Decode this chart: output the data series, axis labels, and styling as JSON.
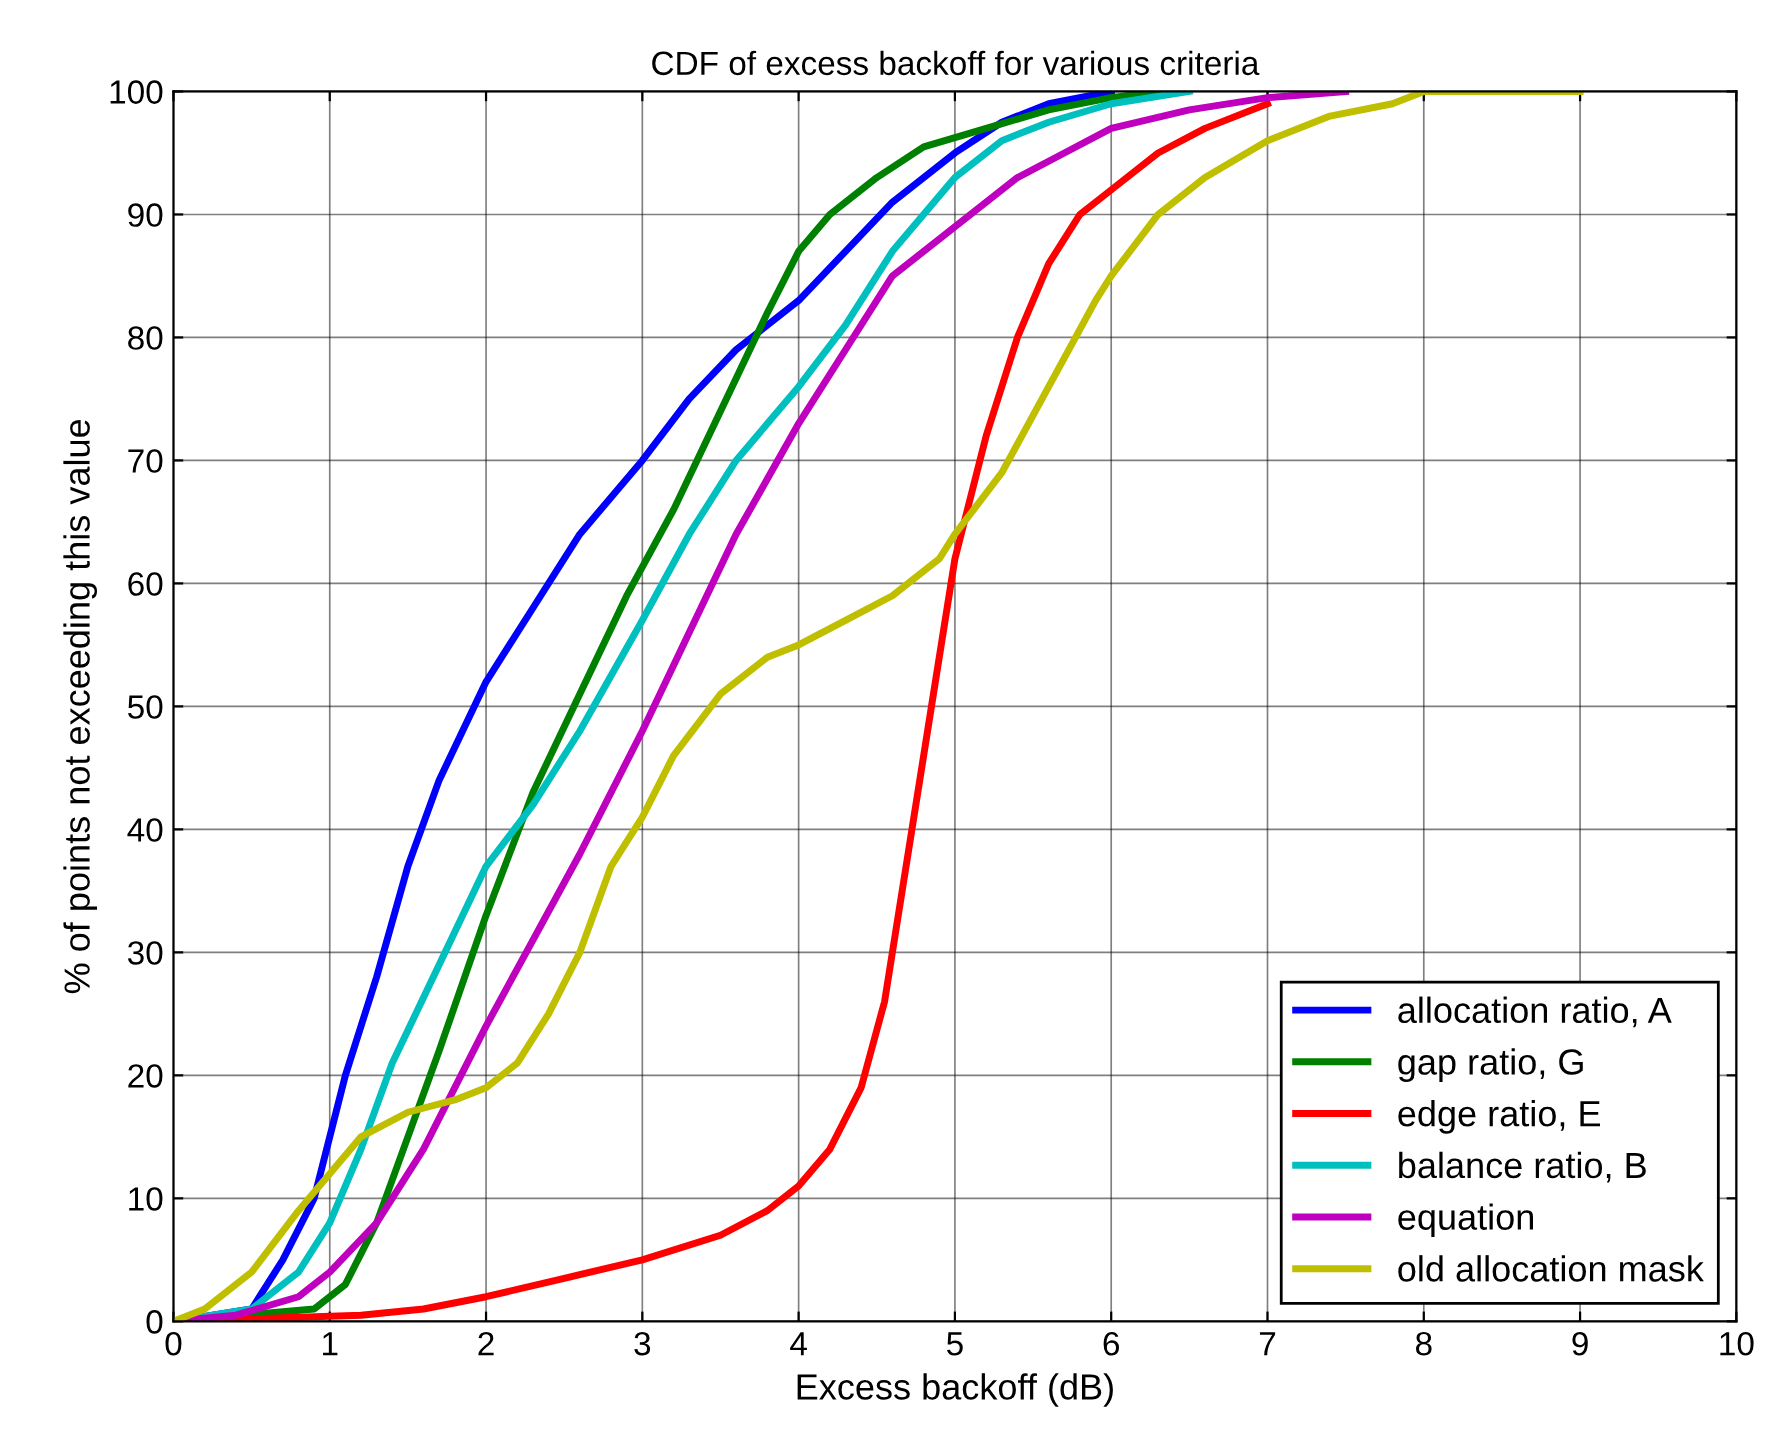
{
  "chart_data": {
    "type": "line",
    "title": "CDF of excess backoff for various criteria",
    "xlabel": "Excess backoff (dB)",
    "ylabel": "% of points not exceeding this value",
    "xlim": [
      0,
      10
    ],
    "ylim": [
      0,
      100
    ],
    "xticks": [
      0,
      1,
      2,
      3,
      4,
      5,
      6,
      7,
      8,
      9,
      10
    ],
    "yticks": [
      0,
      10,
      20,
      30,
      40,
      50,
      60,
      70,
      80,
      90,
      100
    ],
    "grid": true,
    "legend": "bottom right",
    "line_style": "solid",
    "marker": "none",
    "series": [
      {
        "name": "allocation ratio, A",
        "color": "#0000ff",
        "x": [
          0,
          0.5,
          0.7,
          0.9,
          1.1,
          1.3,
          1.5,
          1.7,
          2.0,
          2.3,
          2.6,
          3.0,
          3.3,
          3.6,
          4.0,
          4.3,
          4.6,
          5.0,
          5.3,
          5.6,
          6.0
        ],
        "values": [
          0,
          1,
          5,
          10,
          20,
          28,
          37,
          44,
          52,
          58,
          64,
          70,
          75,
          79,
          83,
          87,
          91,
          95,
          97.5,
          99,
          100
        ]
      },
      {
        "name": "gap ratio, G",
        "color": "#008000",
        "x": [
          0,
          0.9,
          1.1,
          1.3,
          1.5,
          1.7,
          2.0,
          2.3,
          2.6,
          2.9,
          3.2,
          3.5,
          3.8,
          4.0,
          4.2,
          4.5,
          4.8,
          5.2,
          5.6,
          6.0,
          6.3
        ],
        "values": [
          0,
          1,
          3,
          8,
          15,
          22,
          33,
          43,
          51,
          59,
          66,
          74,
          82,
          87,
          90,
          93,
          95.5,
          97,
          98.5,
          99.5,
          100
        ]
      },
      {
        "name": "edge ratio, E",
        "color": "#ff0000",
        "x": [
          0,
          1.2,
          1.6,
          2.0,
          2.5,
          3.0,
          3.5,
          3.8,
          4.0,
          4.2,
          4.4,
          4.55,
          4.7,
          4.85,
          5.0,
          5.2,
          5.4,
          5.6,
          5.8,
          6.0,
          6.3,
          6.6,
          7.0
        ],
        "values": [
          0,
          0.5,
          1,
          2,
          3.5,
          5,
          7,
          9,
          11,
          14,
          19,
          26,
          38,
          50,
          62,
          72,
          80,
          86,
          90,
          92,
          95,
          97,
          99
        ]
      },
      {
        "name": "balance ratio, B",
        "color": "#00bfbf",
        "x": [
          0,
          0.5,
          0.8,
          1.0,
          1.2,
          1.4,
          1.7,
          2.0,
          2.3,
          2.6,
          3.0,
          3.3,
          3.6,
          4.0,
          4.3,
          4.6,
          5.0,
          5.3,
          5.6,
          6.0,
          6.5
        ],
        "values": [
          0,
          1,
          4,
          8,
          14,
          21,
          29,
          37,
          42,
          48,
          57,
          64,
          70,
          76,
          81,
          87,
          93,
          96,
          97.5,
          99,
          100
        ]
      },
      {
        "name": "equation",
        "color": "#bf00bf",
        "x": [
          0,
          0.4,
          0.8,
          1.0,
          1.3,
          1.6,
          2.0,
          2.3,
          2.6,
          3.0,
          3.3,
          3.6,
          4.0,
          4.3,
          4.6,
          5.0,
          5.4,
          5.7,
          6.0,
          6.5,
          7.0,
          7.5
        ],
        "values": [
          0,
          0.5,
          2,
          4,
          8,
          14,
          24,
          31,
          38,
          48,
          56,
          64,
          73,
          79,
          85,
          89,
          93,
          95,
          97,
          98.5,
          99.5,
          100
        ]
      },
      {
        "name": "old allocation mask",
        "color": "#bfbf00",
        "x": [
          0,
          0.2,
          0.5,
          0.8,
          1.0,
          1.2,
          1.5,
          1.8,
          2.0,
          2.2,
          2.4,
          2.6,
          2.8,
          3.0,
          3.2,
          3.5,
          3.8,
          4.0,
          4.3,
          4.6,
          4.9,
          5.0,
          5.3,
          5.6,
          5.9,
          6.0,
          6.3,
          6.6,
          7.0,
          7.4,
          7.8,
          8.0,
          9.0
        ],
        "values": [
          0,
          1,
          4,
          9,
          12,
          15,
          17,
          18,
          19,
          21,
          25,
          30,
          37,
          41,
          46,
          51,
          54,
          55,
          57,
          59,
          62,
          64,
          69,
          76,
          83,
          85,
          90,
          93,
          96,
          98,
          99,
          100,
          100
        ]
      }
    ]
  }
}
